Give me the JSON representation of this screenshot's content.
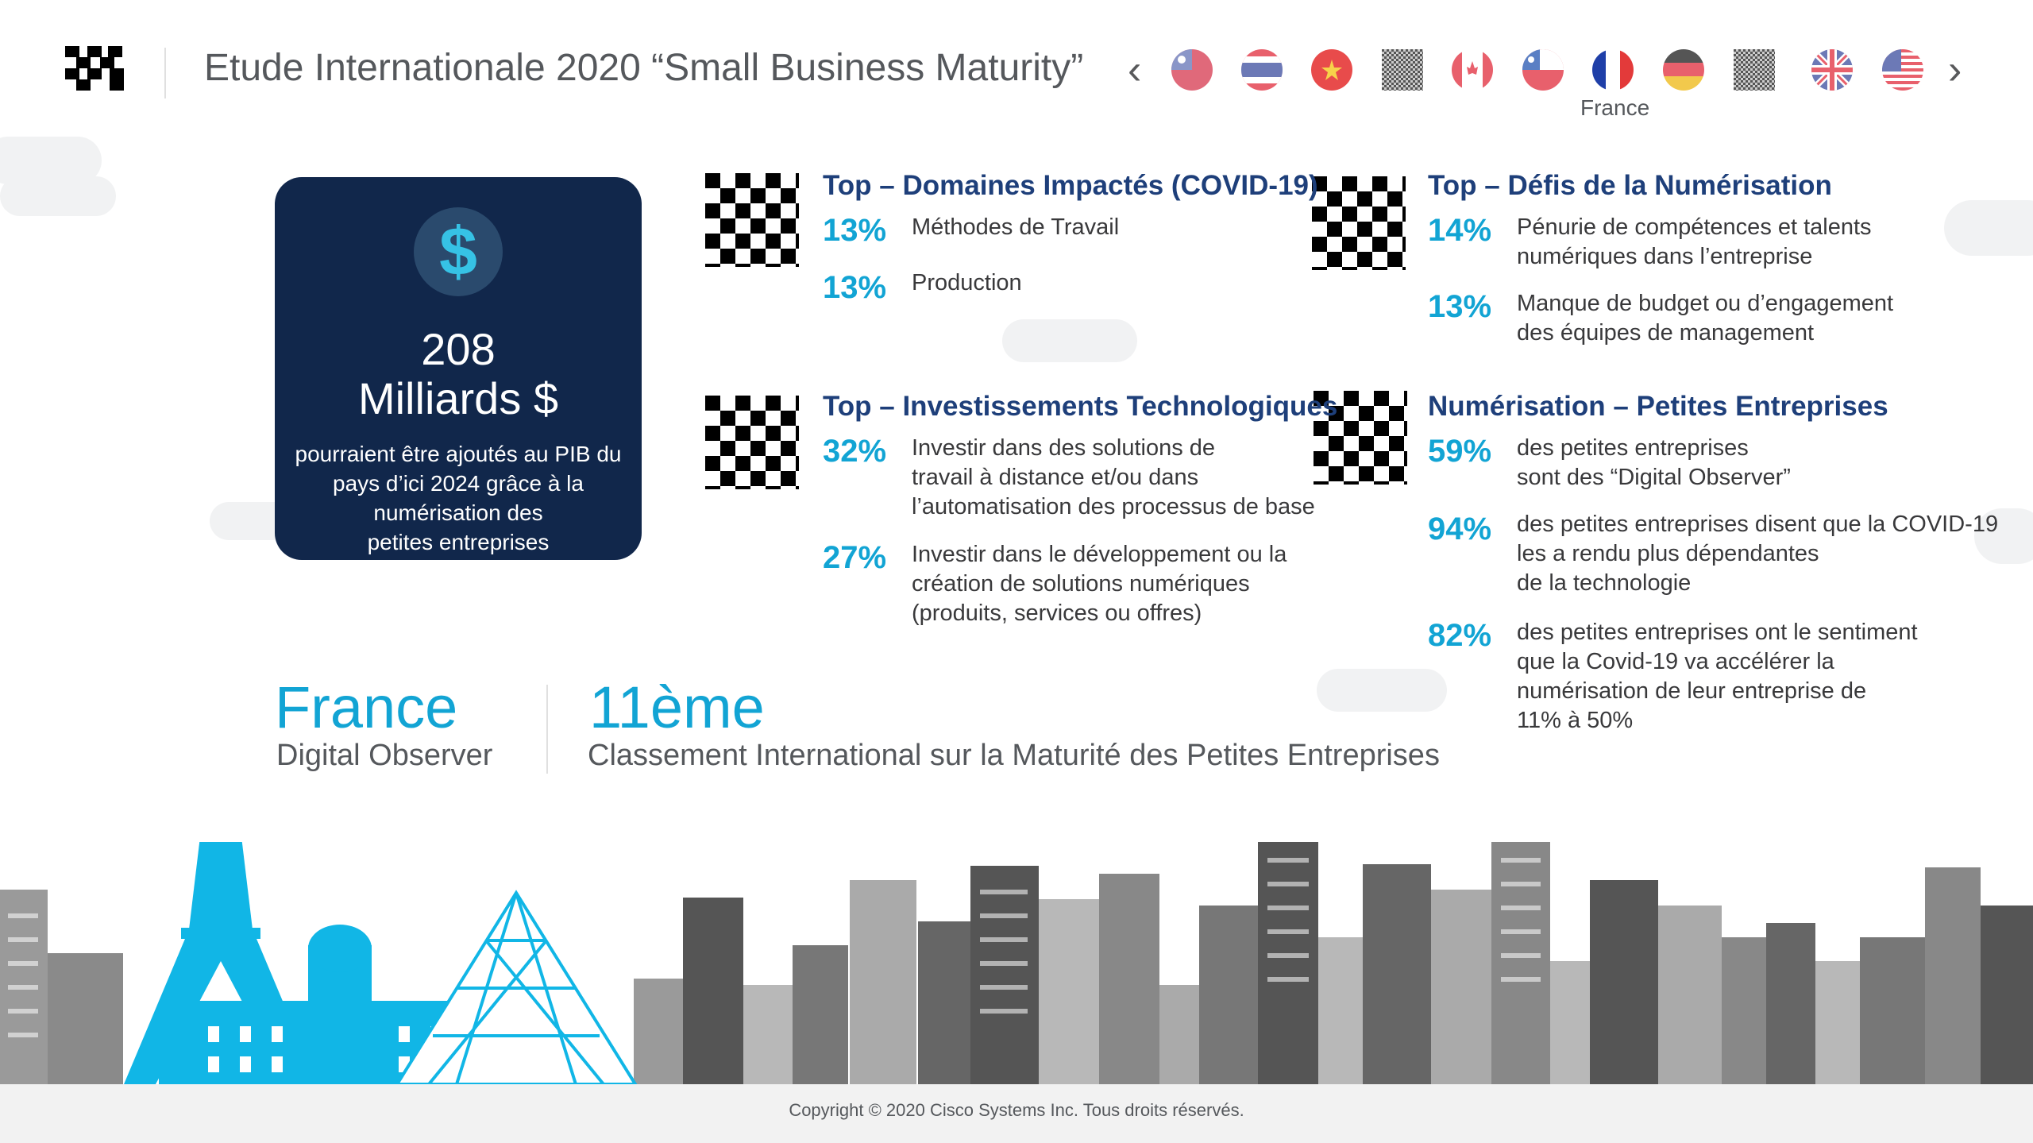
{
  "header": {
    "title": "Etude Internationale 2020 “Small Business Maturity”",
    "prev_icon": "chevron-left-icon",
    "next_icon": "chevron-right-icon",
    "selected_country_label": "France",
    "flags": [
      {
        "name": "taiwan"
      },
      {
        "name": "thailand"
      },
      {
        "name": "vietnam"
      },
      {
        "name": "unknown-1"
      },
      {
        "name": "canada"
      },
      {
        "name": "chile"
      },
      {
        "name": "france",
        "selected": true
      },
      {
        "name": "germany"
      },
      {
        "name": "unknown-2"
      },
      {
        "name": "uk"
      },
      {
        "name": "usa"
      }
    ]
  },
  "card": {
    "icon": "dollar-icon",
    "amount": "208",
    "unit": "Milliards $",
    "line1": "pourraient être ajoutés au PIB du",
    "line2": "pays d’ici 2024 grâce à la",
    "line3": "numérisation des",
    "line4": "petites entreprises"
  },
  "sections": {
    "domaines": {
      "title": "Top – Domaines Impactés (COVID-19)",
      "items": [
        {
          "pct": "13%",
          "lines": [
            "Méthodes de Travail"
          ]
        },
        {
          "pct": "13%",
          "lines": [
            "Production"
          ]
        }
      ]
    },
    "defis": {
      "title": "Top – Défis de la Numérisation",
      "items": [
        {
          "pct": "14%",
          "lines": [
            "Pénurie de compétences et talents",
            "numériques dans l’entreprise"
          ]
        },
        {
          "pct": "13%",
          "lines": [
            "Manque de budget ou d’engagement",
            "des équipes de management"
          ]
        }
      ]
    },
    "investissements": {
      "title": "Top – Investissements Technologiques",
      "items": [
        {
          "pct": "32%",
          "lines": [
            "Investir dans des solutions de",
            "travail à distance et/ou dans",
            "l’automatisation des processus de base"
          ]
        },
        {
          "pct": "27%",
          "lines": [
            "Investir dans le développement ou la",
            "création de solutions numériques",
            "(produits, services ou offres)"
          ]
        }
      ]
    },
    "numerisation": {
      "title": "Numérisation – Petites Entreprises",
      "items": [
        {
          "pct": "59%",
          "lines": [
            "des petites entreprises",
            "sont des “Digital Observer”"
          ]
        },
        {
          "pct": "94%",
          "lines": [
            "des petites entreprises disent que la COVID-19",
            "les a rendu plus dépendantes",
            "de la technologie"
          ]
        },
        {
          "pct": "82%",
          "lines": [
            "des petites entreprises ont le sentiment",
            "que la Covid-19 va accélérer la",
            "numérisation de leur entreprise de",
            "11% à 50%"
          ]
        }
      ]
    }
  },
  "country": {
    "name": "France",
    "category": "Digital Observer",
    "rank": "11ème",
    "rank_label": "Classement International sur la Maturité des Petites Entreprises"
  },
  "footer": {
    "copyright": "Copyright © 2020 Cisco Systems Inc. Tous droits réservés."
  },
  "colors": {
    "accent": "#12a4d4",
    "navy": "#11274b",
    "section_title": "#1e3f7a"
  }
}
